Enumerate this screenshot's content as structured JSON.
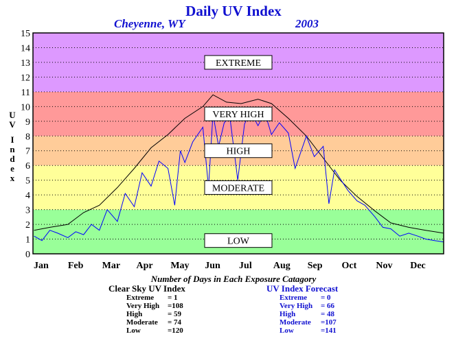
{
  "header": {
    "title": "Daily UV Index",
    "location": "Cheyenne, WY",
    "year": "2003"
  },
  "chart_data": {
    "type": "line",
    "title": "Daily UV Index",
    "xlabel": "",
    "ylabel": "UV Index",
    "ylim": [
      0,
      15
    ],
    "yticks": [
      "0",
      "1",
      "2",
      "3",
      "4",
      "5",
      "6",
      "7",
      "8",
      "9",
      "10",
      "11",
      "12",
      "13",
      "14",
      "15"
    ],
    "xlim": [
      0,
      365
    ],
    "month_labels": [
      "Jan",
      "Feb",
      "Mar",
      "Apr",
      "May",
      "Jun",
      "Jul",
      "Aug",
      "Sep",
      "Oct",
      "Nov",
      "Dec"
    ],
    "grid": true,
    "bands": [
      {
        "name": "LOW",
        "from": 0,
        "to": 3,
        "color": "#99ff99"
      },
      {
        "name": "MODERATE",
        "from": 3,
        "to": 6,
        "color": "#ffff99"
      },
      {
        "name": "HIGH",
        "from": 6,
        "to": 8,
        "color": "#ffcc99"
      },
      {
        "name": "VERY HIGH",
        "from": 8,
        "to": 11,
        "color": "#ff9999"
      },
      {
        "name": "EXTREME",
        "from": 11,
        "to": 15,
        "color": "#dd99ff"
      }
    ],
    "series": [
      {
        "color": "#000000",
        "x": [
          1,
          15,
          31,
          45,
          59,
          75,
          90,
          105,
          120,
          135,
          151,
          160,
          172,
          185,
          200,
          212,
          227,
          243,
          258,
          273,
          288,
          304,
          318,
          334,
          349,
          365
        ],
        "y": [
          1.6,
          1.8,
          2.0,
          2.8,
          3.3,
          4.5,
          5.8,
          7.2,
          8.1,
          9.2,
          10.0,
          10.8,
          10.3,
          10.2,
          10.5,
          10.2,
          9.2,
          8.0,
          6.5,
          5.0,
          3.9,
          2.9,
          2.1,
          1.8,
          1.6,
          1.4
        ]
      },
      {
        "color": "#0000ff",
        "x": [
          1,
          8,
          15,
          22,
          31,
          38,
          45,
          52,
          59,
          66,
          75,
          82,
          90,
          97,
          105,
          112,
          120,
          126,
          131,
          135,
          142,
          151,
          156,
          160,
          165,
          170,
          175,
          182,
          188,
          193,
          200,
          206,
          212,
          219,
          227,
          233,
          243,
          250,
          258,
          263,
          268,
          273,
          280,
          288,
          295,
          304,
          311,
          318,
          326,
          334,
          342,
          349,
          357,
          365
        ],
        "y": [
          1.2,
          0.9,
          1.6,
          1.4,
          1.1,
          1.5,
          1.3,
          2.0,
          1.6,
          3.0,
          2.2,
          4.1,
          3.2,
          5.5,
          4.6,
          6.3,
          5.8,
          3.3,
          7.0,
          6.2,
          7.6,
          8.6,
          4.5,
          9.5,
          7.3,
          8.9,
          9.3,
          5.0,
          8.8,
          9.7,
          8.7,
          9.6,
          8.1,
          8.9,
          8.2,
          5.8,
          8.0,
          6.6,
          7.3,
          3.4,
          5.7,
          5.1,
          4.3,
          3.6,
          3.3,
          2.5,
          1.8,
          1.7,
          1.2,
          1.4,
          1.2,
          1.0,
          0.9,
          0.8
        ]
      }
    ]
  },
  "exposure": {
    "title": "Number of Days in Each Exposure Catagory",
    "clear_sky": {
      "heading": "Clear Sky UV Index",
      "rows": [
        {
          "label": "Extreme",
          "value": "=   1"
        },
        {
          "label": "Very High",
          "value": "=108"
        },
        {
          "label": "High",
          "value": "=  59"
        },
        {
          "label": "Moderate",
          "value": "=  74"
        },
        {
          "label": "Low",
          "value": "=120"
        }
      ]
    },
    "forecast": {
      "heading": "UV Index Forecast",
      "rows": [
        {
          "label": "Extreme",
          "value": "=    0"
        },
        {
          "label": "Very High",
          "value": "=  66"
        },
        {
          "label": "High",
          "value": "=  48"
        },
        {
          "label": "Moderate",
          "value": "=107"
        },
        {
          "label": "Low",
          "value": "=141"
        }
      ]
    }
  }
}
